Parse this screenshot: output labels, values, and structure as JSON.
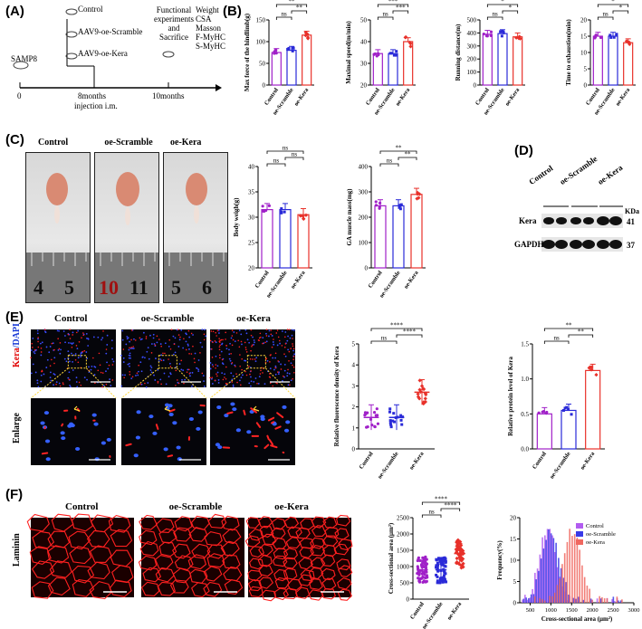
{
  "panels": {
    "A": "(A)",
    "B": "(B)",
    "C": "(C)",
    "D": "(D)",
    "E": "(E)",
    "F": "(F)"
  },
  "timeline": {
    "strain": "SAMP8",
    "groups": [
      "Control",
      "AAV9-oe-Scramble",
      "AAV9-oe-Kera"
    ],
    "t0": "0",
    "t8": "8months",
    "t8sub": "injection i.m.",
    "functional": [
      "Functional",
      "experiments",
      "and",
      "Sacrifice"
    ],
    "t10": "10months",
    "measures": [
      "Weight",
      "CSA",
      "Masson",
      "F-MyHC",
      "S-MyHC"
    ]
  },
  "groups": [
    "Control",
    "oe-Scramble",
    "oe-Kera"
  ],
  "colors": {
    "control": "#a020c8",
    "scramble": "#2a2ad8",
    "kera": "#e8312a",
    "red": "#e00000",
    "blue": "#1a3bd6"
  },
  "sig": {
    "ns": "ns",
    "s1": "*",
    "s2": "**",
    "s3": "***",
    "s4": "****"
  },
  "chart_data": [
    {
      "id": "B1",
      "type": "bar",
      "ylabel": "Max force of the hindlimb(g)",
      "ylim": [
        0,
        150
      ],
      "ticks": [
        "0",
        "50",
        "100",
        "150"
      ],
      "categories": [
        "Control",
        "oe-Scramble",
        "oe-Kera"
      ],
      "values": [
        75,
        80,
        115
      ],
      "sig": [
        [
          "ns",
          0,
          1
        ],
        [
          "**",
          1,
          2
        ],
        [
          "**",
          0,
          2
        ]
      ]
    },
    {
      "id": "B2",
      "type": "bar",
      "ylabel": "Maximal speed(m/min)",
      "ylim": [
        20,
        50
      ],
      "ticks": [
        "20",
        "30",
        "40",
        "50"
      ],
      "categories": [
        "Control",
        "oe-Scramble",
        "oe-Kera"
      ],
      "values": [
        34.5,
        34.5,
        40
      ],
      "sig": [
        [
          "ns",
          0,
          1
        ],
        [
          "***",
          1,
          2
        ],
        [
          "***",
          0,
          2
        ]
      ]
    },
    {
      "id": "B3",
      "type": "bar",
      "ylabel": "Running distance(m)",
      "ylim": [
        0,
        500
      ],
      "ticks": [
        "0",
        "100",
        "200",
        "300",
        "400",
        "500"
      ],
      "categories": [
        "Control",
        "oe-Scramble",
        "oe-Kera"
      ],
      "values": [
        390,
        395,
        370
      ],
      "sig": [
        [
          "ns",
          0,
          1
        ],
        [
          "*",
          1,
          2
        ],
        [
          "*",
          0,
          2
        ]
      ]
    },
    {
      "id": "B4",
      "type": "bar",
      "ylabel": "Time to exhaustion(min)",
      "ylim": [
        0,
        20
      ],
      "ticks": [
        "0",
        "5",
        "10",
        "15",
        "20"
      ],
      "categories": [
        "Control",
        "oe-Scramble",
        "oe-Kera"
      ],
      "values": [
        15,
        15,
        13
      ],
      "sig": [
        [
          "ns",
          0,
          1
        ],
        [
          "*",
          1,
          2
        ],
        [
          "*",
          0,
          2
        ]
      ]
    },
    {
      "id": "C1",
      "type": "bar",
      "ylabel": "Body weigh(g)",
      "ylim": [
        20,
        40
      ],
      "ticks": [
        "20",
        "25",
        "30",
        "35",
        "40"
      ],
      "categories": [
        "Control",
        "oe-Scramble",
        "oe-Kera"
      ],
      "values": [
        31.5,
        31.5,
        30.5
      ],
      "sig": [
        [
          "ns",
          0,
          1
        ],
        [
          "ns",
          1,
          2
        ],
        [
          "ns",
          0,
          2
        ]
      ]
    },
    {
      "id": "C2",
      "type": "bar",
      "ylabel": "GA muscle mass(mg)",
      "ylim": [
        0,
        400
      ],
      "ticks": [
        "0",
        "100",
        "200",
        "300",
        "400"
      ],
      "categories": [
        "Control",
        "oe-Scramble",
        "oe-Kera"
      ],
      "values": [
        245,
        245,
        290
      ],
      "sig": [
        [
          "ns",
          0,
          1
        ],
        [
          "**",
          1,
          2
        ],
        [
          "**",
          0,
          2
        ]
      ]
    },
    {
      "id": "E1",
      "type": "scatter",
      "ylabel": "Relative fluorescence density of Kera",
      "ylim": [
        0,
        5
      ],
      "ticks": [
        "0",
        "1",
        "2",
        "3",
        "4",
        "5"
      ],
      "categories": [
        "Control",
        "oe-Scramble",
        "oe-Kera"
      ],
      "values": [
        1.5,
        1.5,
        2.7
      ],
      "sig": [
        [
          "ns",
          0,
          1
        ],
        [
          "****",
          1,
          2
        ],
        [
          "****",
          0,
          2
        ]
      ]
    },
    {
      "id": "E2",
      "type": "bar",
      "ylabel": "Relative protein level of Kera",
      "ylim": [
        0,
        1.5
      ],
      "ticks": [
        "0.0",
        "0.5",
        "1.0",
        "1.5"
      ],
      "categories": [
        "Control",
        "oe-Scramble",
        "oe-Kera"
      ],
      "values": [
        0.5,
        0.55,
        1.12
      ],
      "sig": [
        [
          "ns",
          0,
          1
        ],
        [
          "**",
          1,
          2
        ],
        [
          "**",
          0,
          2
        ]
      ]
    },
    {
      "id": "F1",
      "type": "scatter",
      "ylabel": "Cross-sectional area (μm²)",
      "ylim": [
        0,
        2500
      ],
      "ticks": [
        "0",
        "500",
        "1000",
        "1500",
        "2000",
        "2500"
      ],
      "categories": [
        "Control",
        "oe-Scramble",
        "oe-Kera"
      ],
      "values": [
        900,
        900,
        1400
      ],
      "sig": [
        [
          "ns",
          0,
          1
        ],
        [
          "****",
          1,
          2
        ],
        [
          "****",
          0,
          2
        ]
      ]
    },
    {
      "id": "F2",
      "type": "bar",
      "xlabel": "Cross-sectional area (μm²)",
      "ylabel": "Frequency(%)",
      "ylim": [
        0,
        20
      ],
      "ticks": [
        "0",
        "5",
        "10",
        "15",
        "20"
      ],
      "xticks": [
        "500",
        "1000",
        "1500",
        "2000",
        "2500",
        "3000"
      ],
      "xlim": [
        250,
        3000
      ],
      "series": [
        {
          "name": "Control",
          "center": 900
        },
        {
          "name": "oe-Scramble",
          "center": 950
        },
        {
          "name": "oe-Kera",
          "center": 1450
        }
      ]
    }
  ],
  "western": {
    "label": "Kera",
    "loading": "GAPDH",
    "unit": "KDa",
    "kd1": "41",
    "kd2": "37"
  },
  "photos": {
    "rulerNums": [
      "4",
      "5",
      "10",
      "11",
      "5",
      "6"
    ]
  },
  "if": {
    "ylabel_kera": "Kera",
    "ylabel_dapi": "/DAPI",
    "enlarge": "Enlarge"
  },
  "laminin": "Laminin"
}
